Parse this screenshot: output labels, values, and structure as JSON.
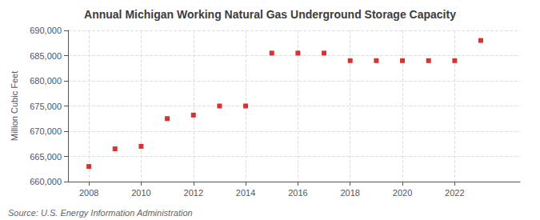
{
  "chart_data": {
    "type": "scatter",
    "title": "Annual Michigan Working Natural Gas Underground Storage Capacity",
    "ylabel": "Million Cubic Feet",
    "annotations": [
      "Source: U.S. Energy Information Administration"
    ],
    "x": [
      2008,
      2009,
      2010,
      2011,
      2012,
      2013,
      2014,
      2015,
      2016,
      2017,
      2018,
      2019,
      2020,
      2021,
      2022,
      2023
    ],
    "values": [
      663000,
      666500,
      667000,
      672500,
      673200,
      675000,
      675000,
      685500,
      685500,
      685500,
      684000,
      684000,
      684000,
      684000,
      684000,
      688000
    ],
    "color": "#cc0000",
    "marker": "square",
    "xlim": [
      2007.2,
      2024.5
    ],
    "xticks": [
      2008,
      2010,
      2012,
      2014,
      2016,
      2018,
      2020,
      2022
    ],
    "ylim": [
      660000,
      690000
    ],
    "yticks": [
      {
        "value": 660000,
        "label": "660,000"
      },
      {
        "value": 665000,
        "label": "665,000"
      },
      {
        "value": 670000,
        "label": "670,000"
      },
      {
        "value": 675000,
        "label": "675,000"
      },
      {
        "value": 680000,
        "label": "680,000"
      },
      {
        "value": 685000,
        "label": "685,000"
      },
      {
        "value": 690000,
        "label": "690,000"
      }
    ],
    "grid": true
  }
}
